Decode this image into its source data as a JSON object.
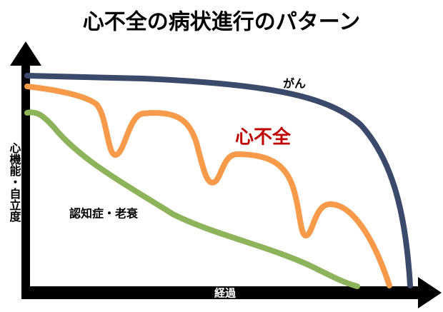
{
  "title": "心不全の病状進行のパターン",
  "y_axis_label": "心機能・自立度",
  "x_axis_label": "経過",
  "curves": [
    {
      "label": "がん"
    },
    {
      "label": "心不全"
    },
    {
      "label": "認知症・老衰"
    }
  ]
}
